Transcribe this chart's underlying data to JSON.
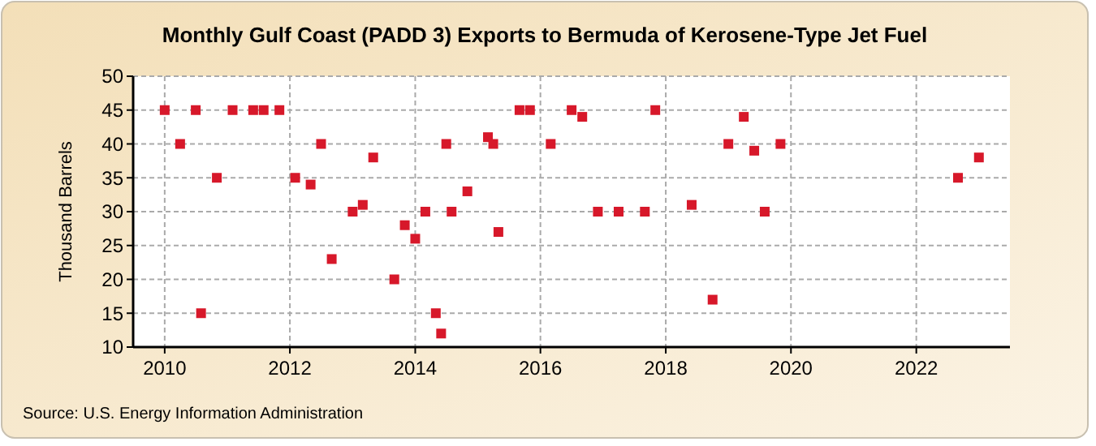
{
  "chart_data": {
    "type": "scatter",
    "title": "Monthly Gulf Coast (PADD 3) Exports to Bermuda of Kerosene-Type Jet Fuel",
    "ylabel": "Thousand Barrels",
    "annotations": [
      "Source: U.S. Energy Information Administration"
    ],
    "x": [
      "2010-01",
      "2010-04",
      "2010-07",
      "2010-08",
      "2010-11",
      "2011-02",
      "2011-06",
      "2011-08",
      "2011-11",
      "2012-02",
      "2012-05",
      "2012-07",
      "2012-09",
      "2013-01",
      "2013-03",
      "2013-05",
      "2013-09",
      "2013-11",
      "2014-01",
      "2014-03",
      "2014-05",
      "2014-06",
      "2014-07",
      "2014-08",
      "2014-11",
      "2015-03",
      "2015-04",
      "2015-05",
      "2015-09",
      "2015-11",
      "2016-03",
      "2016-07",
      "2016-09",
      "2016-12",
      "2017-04",
      "2017-09",
      "2017-11",
      "2018-06",
      "2018-10",
      "2019-01",
      "2019-04",
      "2019-06",
      "2019-08",
      "2019-11",
      "2022-09",
      "2023-01"
    ],
    "series": [
      {
        "color": "#d7182a",
        "values": [
          45,
          40,
          45,
          15,
          35,
          45,
          45,
          45,
          45,
          35,
          34,
          40,
          23,
          30,
          31,
          38,
          20,
          28,
          26,
          30,
          15,
          12,
          40,
          30,
          33,
          41,
          40,
          27,
          45,
          45,
          40,
          45,
          44,
          30,
          30,
          30,
          45,
          31,
          17,
          40,
          44,
          39,
          30,
          40,
          35,
          38
        ]
      }
    ],
    "xlim": [
      "2009-07",
      "2023-07"
    ],
    "xticks": [
      {
        "value": "2010",
        "label": "2010"
      },
      {
        "value": "2012",
        "label": "2012"
      },
      {
        "value": "2014",
        "label": "2014"
      },
      {
        "value": "2016",
        "label": "2016"
      },
      {
        "value": "2018",
        "label": "2018"
      },
      {
        "value": "2020",
        "label": "2020"
      },
      {
        "value": "2022",
        "label": "2022"
      }
    ],
    "ylim": [
      10,
      50
    ],
    "yticks": [
      10,
      15,
      20,
      25,
      30,
      35,
      40,
      45,
      50
    ],
    "grid": true,
    "marker": "square"
  }
}
